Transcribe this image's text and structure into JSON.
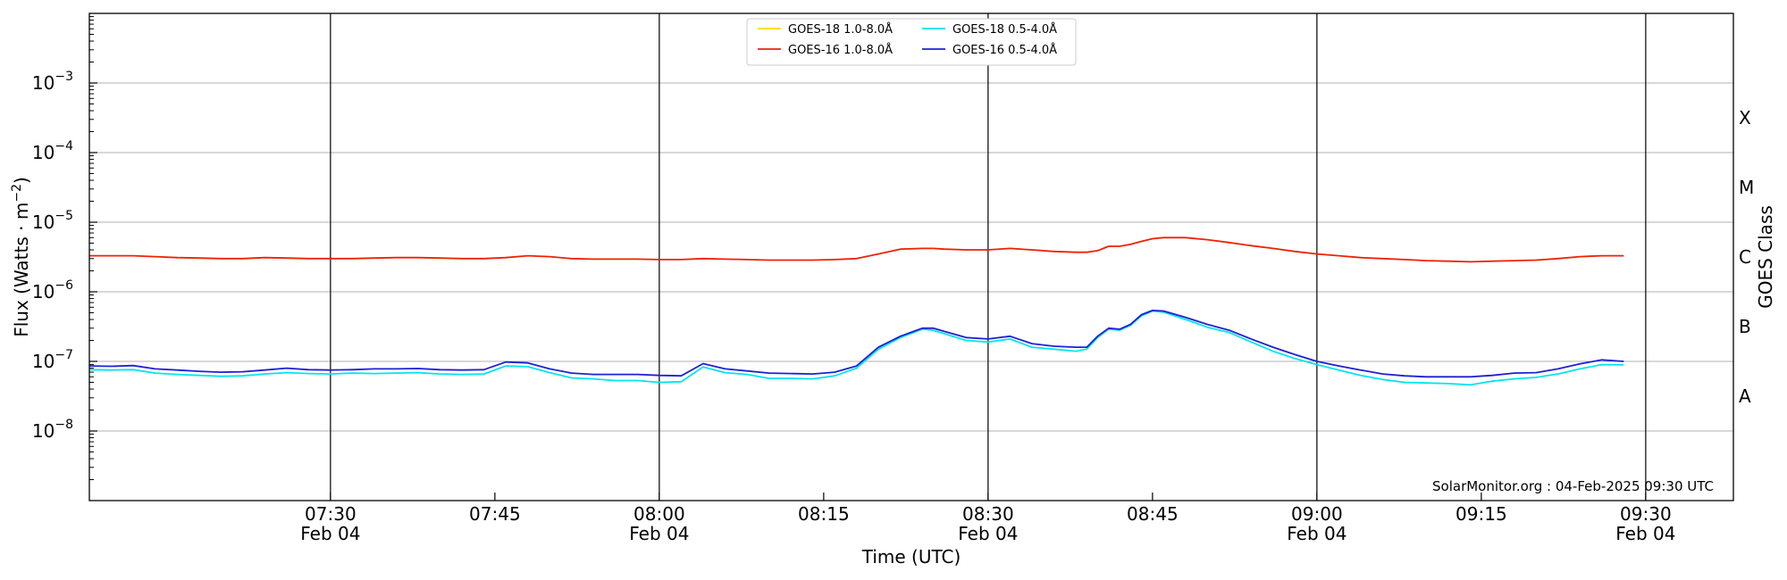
{
  "chart_data": {
    "type": "line",
    "title": "",
    "xlabel": "Time (UTC)",
    "ylabel": "Flux (Watts · m⁻²)",
    "right_ylabel": "GOES Class",
    "y_scale": "log",
    "ylim": [
      1e-09,
      0.01
    ],
    "xlim": [
      "07:08",
      "09:38"
    ],
    "x_ticks": [
      {
        "time": "07:30",
        "label": "07:30",
        "sublabel": "Feb 04"
      },
      {
        "time": "07:45",
        "label": "07:45",
        "sublabel": ""
      },
      {
        "time": "08:00",
        "label": "08:00",
        "sublabel": "Feb 04"
      },
      {
        "time": "08:15",
        "label": "08:15",
        "sublabel": ""
      },
      {
        "time": "08:30",
        "label": "08:30",
        "sublabel": "Feb 04"
      },
      {
        "time": "08:45",
        "label": "08:45",
        "sublabel": ""
      },
      {
        "time": "09:00",
        "label": "09:00",
        "sublabel": "Feb 04"
      },
      {
        "time": "09:15",
        "label": "09:15",
        "sublabel": ""
      },
      {
        "time": "09:30",
        "label": "09:30",
        "sublabel": "Feb 04"
      }
    ],
    "vertical_lines": [
      "07:30",
      "08:00",
      "08:30",
      "09:00",
      "09:30"
    ],
    "y_ticks": [
      {
        "value": 1e-08,
        "base": "10",
        "exp": "−8"
      },
      {
        "value": 1e-07,
        "base": "10",
        "exp": "−7"
      },
      {
        "value": 1e-06,
        "base": "10",
        "exp": "−6"
      },
      {
        "value": 1e-05,
        "base": "10",
        "exp": "−5"
      },
      {
        "value": 0.0001,
        "base": "10",
        "exp": "−4"
      },
      {
        "value": 0.001,
        "base": "10",
        "exp": "−3"
      }
    ],
    "goes_classes": [
      {
        "label": "A",
        "value": 3.16e-08
      },
      {
        "label": "B",
        "value": 3.16e-07
      },
      {
        "label": "C",
        "value": 3.16e-06
      },
      {
        "label": "M",
        "value": 3.16e-05
      },
      {
        "label": "X",
        "value": 0.000316
      }
    ],
    "grid": "horizontal at decades",
    "legend_position": "top-center",
    "annotation": "SolarMonitor.org : 04-Feb-2025 09:30 UTC",
    "series": [
      {
        "name": "GOES-18 1.0-8.0Å",
        "color": "#ffd700",
        "x": [],
        "y": []
      },
      {
        "name": "GOES-18 0.5-4.0Å",
        "color": "#00e5ee",
        "x": [
          "07:08",
          "07:10",
          "07:12",
          "07:14",
          "07:16",
          "07:18",
          "07:20",
          "07:22",
          "07:24",
          "07:26",
          "07:28",
          "07:30",
          "07:32",
          "07:34",
          "07:36",
          "07:38",
          "07:40",
          "07:42",
          "07:44",
          "07:46",
          "07:48",
          "07:50",
          "07:52",
          "07:54",
          "07:56",
          "07:58",
          "08:00",
          "08:02",
          "08:04",
          "08:06",
          "08:08",
          "08:10",
          "08:12",
          "08:14",
          "08:16",
          "08:18",
          "08:20",
          "08:22",
          "08:24",
          "08:25",
          "08:26",
          "08:28",
          "08:30",
          "08:32",
          "08:34",
          "08:36",
          "08:38",
          "08:39",
          "08:40",
          "08:41",
          "08:42",
          "08:43",
          "08:44",
          "08:45",
          "08:46",
          "08:48",
          "08:50",
          "08:52",
          "08:54",
          "08:56",
          "08:58",
          "09:00",
          "09:02",
          "09:04",
          "09:06",
          "09:08",
          "09:10",
          "09:12",
          "09:14",
          "09:16",
          "09:18",
          "09:20",
          "09:22",
          "09:24",
          "09:26",
          "09:28"
        ],
        "y": [
          7.6e-08,
          7.5e-08,
          7.6e-08,
          6.8e-08,
          6.5e-08,
          6.3e-08,
          6.1e-08,
          6.2e-08,
          6.6e-08,
          6.9e-08,
          6.7e-08,
          6.6e-08,
          6.8e-08,
          6.7e-08,
          6.8e-08,
          6.9e-08,
          6.6e-08,
          6.5e-08,
          6.6e-08,
          8.6e-08,
          8.4e-08,
          6.9e-08,
          5.8e-08,
          5.6e-08,
          5.3e-08,
          5.3e-08,
          5e-08,
          5.1e-08,
          8.3e-08,
          6.9e-08,
          6.5e-08,
          5.7e-08,
          5.7e-08,
          5.6e-08,
          6.2e-08,
          8e-08,
          1.5e-07,
          2.2e-07,
          2.9e-07,
          2.8e-07,
          2.5e-07,
          2e-07,
          1.9e-07,
          2.1e-07,
          1.6e-07,
          1.5e-07,
          1.4e-07,
          1.5e-07,
          2.2e-07,
          2.9e-07,
          2.8e-07,
          3.3e-07,
          4.5e-07,
          5.3e-07,
          5.1e-07,
          4e-07,
          3.1e-07,
          2.6e-07,
          1.9e-07,
          1.4e-07,
          1.1e-07,
          9e-08,
          7.5e-08,
          6.3e-08,
          5.5e-08,
          5e-08,
          4.9e-08,
          4.8e-08,
          4.6e-08,
          5.2e-08,
          5.6e-08,
          5.9e-08,
          6.6e-08,
          7.8e-08,
          9e-08,
          8.9e-08
        ]
      },
      {
        "name": "GOES-16 1.0-8.0Å",
        "color": "#ee2200",
        "x": [
          "07:08",
          "07:10",
          "07:12",
          "07:14",
          "07:16",
          "07:18",
          "07:20",
          "07:22",
          "07:24",
          "07:26",
          "07:28",
          "07:30",
          "07:32",
          "07:34",
          "07:36",
          "07:38",
          "07:40",
          "07:42",
          "07:44",
          "07:46",
          "07:48",
          "07:50",
          "07:52",
          "07:54",
          "07:56",
          "07:58",
          "08:00",
          "08:02",
          "08:04",
          "08:06",
          "08:08",
          "08:10",
          "08:12",
          "08:14",
          "08:16",
          "08:18",
          "08:20",
          "08:22",
          "08:24",
          "08:25",
          "08:26",
          "08:28",
          "08:30",
          "08:32",
          "08:34",
          "08:36",
          "08:38",
          "08:39",
          "08:40",
          "08:41",
          "08:42",
          "08:43",
          "08:44",
          "08:45",
          "08:46",
          "08:48",
          "08:50",
          "08:52",
          "08:54",
          "08:56",
          "08:58",
          "09:00",
          "09:02",
          "09:04",
          "09:06",
          "09:08",
          "09:10",
          "09:12",
          "09:14",
          "09:16",
          "09:18",
          "09:20",
          "09:22",
          "09:24",
          "09:26",
          "09:28"
        ],
        "y": [
          3.3e-06,
          3.3e-06,
          3.3e-06,
          3.2e-06,
          3.1e-06,
          3.05e-06,
          3e-06,
          3e-06,
          3.1e-06,
          3.05e-06,
          3e-06,
          3e-06,
          3e-06,
          3.05e-06,
          3.1e-06,
          3.1e-06,
          3.05e-06,
          3e-06,
          3e-06,
          3.1e-06,
          3.3e-06,
          3.2e-06,
          3e-06,
          2.95e-06,
          2.95e-06,
          2.95e-06,
          2.9e-06,
          2.9e-06,
          3e-06,
          2.95e-06,
          2.9e-06,
          2.85e-06,
          2.85e-06,
          2.85e-06,
          2.9e-06,
          3e-06,
          3.5e-06,
          4.1e-06,
          4.2e-06,
          4.2e-06,
          4.1e-06,
          4e-06,
          4e-06,
          4.2e-06,
          4e-06,
          3.8e-06,
          3.7e-06,
          3.7e-06,
          3.9e-06,
          4.5e-06,
          4.5e-06,
          4.8e-06,
          5.3e-06,
          5.8e-06,
          6e-06,
          6e-06,
          5.6e-06,
          5.1e-06,
          4.6e-06,
          4.2e-06,
          3.8e-06,
          3.5e-06,
          3.3e-06,
          3.1e-06,
          3e-06,
          2.9e-06,
          2.8e-06,
          2.75e-06,
          2.7e-06,
          2.75e-06,
          2.8e-06,
          2.85e-06,
          3e-06,
          3.2e-06,
          3.3e-06,
          3.3e-06
        ]
      },
      {
        "name": "GOES-16 0.5-4.0Å",
        "color": "#1f1fd6",
        "x": [
          "07:08",
          "07:10",
          "07:12",
          "07:14",
          "07:16",
          "07:18",
          "07:20",
          "07:22",
          "07:24",
          "07:26",
          "07:28",
          "07:30",
          "07:32",
          "07:34",
          "07:36",
          "07:38",
          "07:40",
          "07:42",
          "07:44",
          "07:46",
          "07:48",
          "07:50",
          "07:52",
          "07:54",
          "07:56",
          "07:58",
          "08:00",
          "08:02",
          "08:04",
          "08:06",
          "08:08",
          "08:10",
          "08:12",
          "08:14",
          "08:16",
          "08:18",
          "08:20",
          "08:22",
          "08:24",
          "08:25",
          "08:26",
          "08:28",
          "08:30",
          "08:32",
          "08:34",
          "08:36",
          "08:38",
          "08:39",
          "08:40",
          "08:41",
          "08:42",
          "08:43",
          "08:44",
          "08:45",
          "08:46",
          "08:48",
          "08:50",
          "08:52",
          "08:54",
          "08:56",
          "08:58",
          "09:00",
          "09:02",
          "09:04",
          "09:06",
          "09:08",
          "09:10",
          "09:12",
          "09:14",
          "09:16",
          "09:18",
          "09:20",
          "09:22",
          "09:24",
          "09:26",
          "09:28"
        ],
        "y": [
          8.6e-08,
          8.5e-08,
          8.7e-08,
          7.8e-08,
          7.5e-08,
          7.2e-08,
          7e-08,
          7.1e-08,
          7.5e-08,
          8e-08,
          7.6e-08,
          7.5e-08,
          7.6e-08,
          7.8e-08,
          7.8e-08,
          7.9e-08,
          7.6e-08,
          7.5e-08,
          7.6e-08,
          9.8e-08,
          9.5e-08,
          7.8e-08,
          6.8e-08,
          6.5e-08,
          6.5e-08,
          6.5e-08,
          6.3e-08,
          6.2e-08,
          9.3e-08,
          7.8e-08,
          7.3e-08,
          6.8e-08,
          6.7e-08,
          6.6e-08,
          7e-08,
          8.6e-08,
          1.6e-07,
          2.3e-07,
          3e-07,
          3e-07,
          2.7e-07,
          2.2e-07,
          2.1e-07,
          2.3e-07,
          1.8e-07,
          1.65e-07,
          1.6e-07,
          1.6e-07,
          2.3e-07,
          3e-07,
          2.9e-07,
          3.4e-07,
          4.7e-07,
          5.4e-07,
          5.3e-07,
          4.3e-07,
          3.4e-07,
          2.8e-07,
          2.1e-07,
          1.6e-07,
          1.25e-07,
          1e-07,
          8.6e-08,
          7.5e-08,
          6.6e-08,
          6.2e-08,
          6e-08,
          6e-08,
          6e-08,
          6.3e-08,
          6.8e-08,
          6.9e-08,
          7.8e-08,
          9.2e-08,
          1.05e-07,
          1e-07
        ]
      }
    ]
  }
}
